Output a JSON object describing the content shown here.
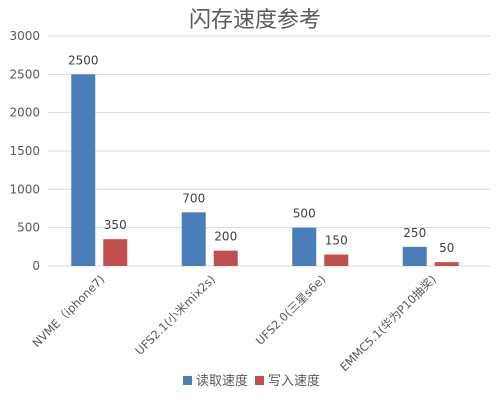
{
  "chart_data": {
    "type": "bar",
    "title": "闪存速度参考",
    "categories": [
      "NVME（iphone7)",
      "UFS2.1(小米mix2s)",
      "UFS2.0(三星s6e)",
      "EMMC5.1(华为P10抽奖)"
    ],
    "series": [
      {
        "name": "读取速度",
        "color": "#4a7ebb",
        "values": [
          2500,
          700,
          500,
          250
        ]
      },
      {
        "name": "写入速度",
        "color": "#c0504d",
        "values": [
          350,
          200,
          150,
          50
        ]
      }
    ],
    "ylim": [
      0,
      3000
    ],
    "yticks": [
      0,
      500,
      1000,
      1500,
      2000,
      2500,
      3000
    ],
    "grid": true,
    "legend": "bottom"
  }
}
